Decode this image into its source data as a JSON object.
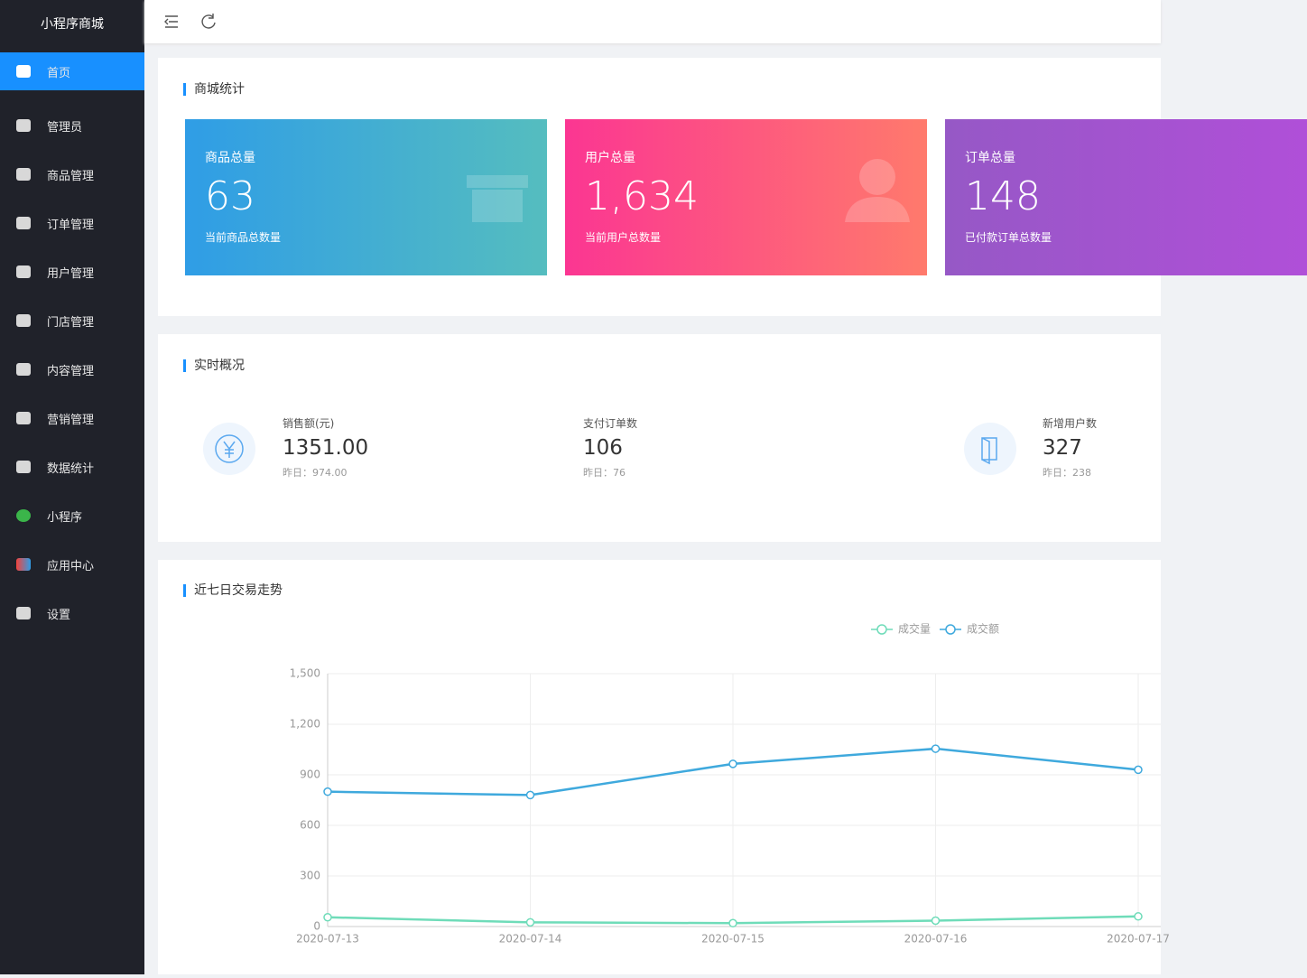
{
  "sidebar": {
    "title": "小程序商城",
    "menu": [
      "首页",
      "管理员",
      "商品管理",
      "订单管理",
      "用户管理",
      "门店管理",
      "内容管理",
      "营销管理",
      "数据统计",
      "小程序",
      "应用中心",
      "设置"
    ]
  },
  "stats": {
    "title": "商城统计",
    "cards": [
      {
        "label": "商品总量",
        "value": "63",
        "desc": "当前商品总数量"
      },
      {
        "label": "用户总量",
        "value": "1,634",
        "desc": "当前用户总数量"
      },
      {
        "label": "订单总量",
        "value": "148",
        "desc": "已付款订单总数量"
      }
    ]
  },
  "realtime": {
    "title": "实时概况",
    "items": [
      {
        "label": "销售额(元)",
        "value": "1351.00",
        "yesterday": "昨日：974.00"
      },
      {
        "label": "支付订单数",
        "value": "106",
        "yesterday": "昨日：76"
      },
      {
        "label": "新增用户数",
        "value": "327",
        "yesterday": "昨日：238"
      }
    ]
  },
  "chart_data": {
    "type": "line",
    "title": "近七日交易走势",
    "categories": [
      "2020-07-13",
      "2020-07-14",
      "2020-07-15",
      "2020-07-16",
      "2020-07-17"
    ],
    "series": [
      {
        "name": "成交量",
        "color": "#6fdcb9",
        "values": [
          55,
          25,
          20,
          35,
          60
        ]
      },
      {
        "name": "成交额",
        "color": "#3fa9dd",
        "values": [
          800,
          780,
          965,
          1055,
          930
        ]
      }
    ],
    "ylim": [
      0,
      1500
    ],
    "yticks": [
      0,
      300,
      600,
      900,
      {
        "value": 1200,
        "label": "1,200"
      },
      {
        "value": 1500,
        "label": "1,500"
      }
    ],
    "grid": true
  }
}
